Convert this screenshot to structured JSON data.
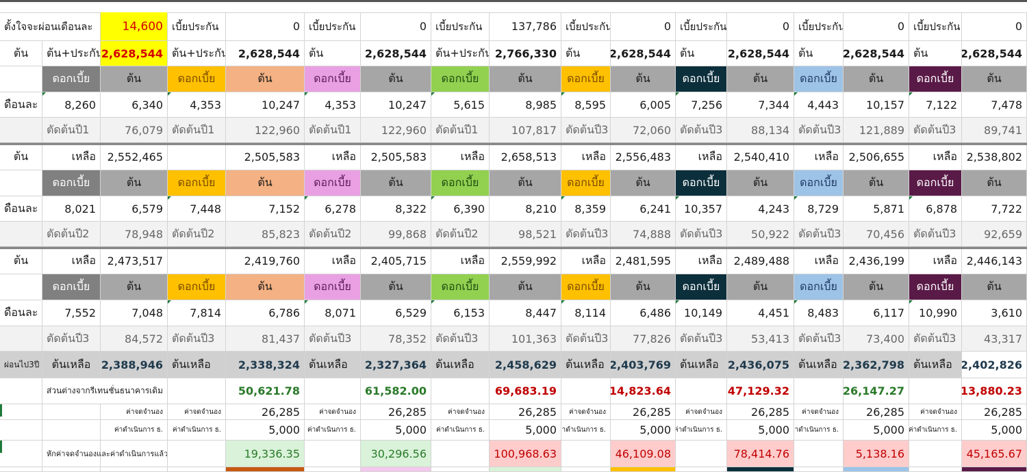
{
  "colors": {
    "yellow": "#ffff00",
    "red_text": "#d40000",
    "gray_header": "#a6a6a6",
    "orange": "#ffc000",
    "salmon": "#f4b183",
    "pink_violet": "#e9a0e2",
    "green": "#92d050",
    "navy": "#0c2f3c",
    "light_blue": "#9dc3e6",
    "plum": "#5a1a48",
    "light_gray_row": "#f2f2f2",
    "summary_gray": "#d0d0d0",
    "positive_green_bg": "#d9f2d9",
    "negative_pink_bg": "#ffcccc",
    "negative_text": "#c00000",
    "green_text": "#2a7a2a",
    "dark_num": "#1f3a4d"
  },
  "top": {
    "intent_label": "ตั้งใจจะผ่อนเดือนละ",
    "intent_value": "14,600",
    "principal_label": "ต้น",
    "principal_plus_ins_label": "ต้น+ประกัน",
    "principal_plus_ins_value": "2,628,544"
  },
  "side_labels": {
    "principal": "ต้น",
    "monthly": "ดือนละ",
    "after3": "ผ่อนไป3ปี"
  },
  "words": {
    "interest": "ดอกเบี้ย",
    "principal": "ต้น",
    "remaining": "เหลือ",
    "insurance": "เบี้ยประกัน",
    "principal_remaining": "ต้นเหลือ",
    "diff_label": "ส่วนต่างจากรีเทนชั่นธนาคารเดิม",
    "mortgage_fee": "ค่าจดจำนอง",
    "operation_fee": "ค่าดำเนินการ ธ.",
    "net_label": "หักค่าจดจำนองและค่าดำเนินการแล้ว"
  },
  "banks": [
    {
      "top_label": "ต้น+ประกัน",
      "ins_value": "0",
      "total": "2,628,544",
      "y1": {
        "int": "4,353",
        "prin": "10,247",
        "cut": "ตัดต้นปี1",
        "cut_val": "122,960"
      },
      "rem1_label": "",
      "rem1": "2,505,583",
      "y2": {
        "int": "7,448",
        "prin": "7,152",
        "cut": "ตัดต้นปี2",
        "cut_val": "85,823"
      },
      "rem2_label": "",
      "rem2": "2,419,760",
      "y3": {
        "int": "7,814",
        "prin": "6,786",
        "cut": "ตัดต้นปี3",
        "cut_val": "81,437"
      },
      "final": "2,338,324",
      "diff": "50,621.78",
      "diff_neg": false,
      "fee": "26,285",
      "op": "5,000",
      "net": "19,336.35",
      "net_neg": false
    },
    {
      "top_label": "ต้น",
      "ins_value": "0",
      "total": "2,628,544",
      "y1": {
        "int": "4,353",
        "prin": "10,247",
        "cut": "ตัดต้นปี1",
        "cut_val": "122,960"
      },
      "rem1_label": "เหลือ",
      "rem1": "2,505,583",
      "y2": {
        "int": "6,278",
        "prin": "8,322",
        "cut": "ตัดต้นปี2",
        "cut_val": "99,868"
      },
      "rem2_label": "เหลือ",
      "rem2": "2,405,715",
      "y3": {
        "int": "8,071",
        "prin": "6,529",
        "cut": "ตัดต้นปี3",
        "cut_val": "78,352"
      },
      "final": "2,327,364",
      "diff": "61,582.00",
      "diff_neg": false,
      "fee": "26,285",
      "op": "5,000",
      "net": "30,296.56",
      "net_neg": false
    },
    {
      "top_label": "ต้น+ประกัน",
      "ins_value": "137,786",
      "total": "2,766,330",
      "y1": {
        "int": "5,615",
        "prin": "8,985",
        "cut": "ตัดต้นปี1",
        "cut_val": "107,817"
      },
      "rem1_label": "เหลือ",
      "rem1": "2,658,513",
      "y2": {
        "int": "6,390",
        "prin": "8,210",
        "cut": "ตัดต้นปี2",
        "cut_val": "98,521"
      },
      "rem2_label": "เหลือ",
      "rem2": "2,559,992",
      "y3": {
        "int": "6,153",
        "prin": "8,447",
        "cut": "ตัดต้นปี3",
        "cut_val": "101,363"
      },
      "final": "2,458,629",
      "diff": "69,683.19",
      "diff_neg": true,
      "fee": "26,285",
      "op": "5,000",
      "net": "100,968.63",
      "net_neg": true
    },
    {
      "top_label": "ต้น",
      "ins_value": "0",
      "total": "2,628,544",
      "y1": {
        "int": "8,595",
        "prin": "6,005",
        "cut": "ตัดต้นปี3",
        "cut_val": "72,060"
      },
      "rem1_label": "เหลือ",
      "rem1": "2,556,483",
      "y2": {
        "int": "8,359",
        "prin": "6,241",
        "cut": "ตัดต้นปี3",
        "cut_val": "74,888"
      },
      "rem2_label": "เหลือ",
      "rem2": "2,481,595",
      "y3": {
        "int": "8,114",
        "prin": "6,486",
        "cut": "ตัดต้นปี3",
        "cut_val": "77,826"
      },
      "final": "2,403,769",
      "diff": "-14,823.64",
      "diff_neg": true,
      "fee": "26,285",
      "op": "5,000",
      "net": "46,109.08",
      "net_neg": true
    },
    {
      "top_label": "ต้น",
      "ins_value": "0",
      "total": "2,628,544",
      "y1": {
        "int": "7,256",
        "prin": "7,344",
        "cut": "ตัดต้นปี3",
        "cut_val": "88,134"
      },
      "rem1_label": "เหลือ",
      "rem1": "2,540,410",
      "y2": {
        "int": "10,357",
        "prin": "4,243",
        "cut": "ตัดต้นปี3",
        "cut_val": "50,922"
      },
      "rem2_label": "เหลือ",
      "rem2": "2,489,488",
      "y3": {
        "int": "10,149",
        "prin": "4,451",
        "cut": "ตัดต้นปี3",
        "cut_val": "53,413"
      },
      "final": "2,436,075",
      "diff": "- 47,129.32",
      "diff_neg": true,
      "fee": "26,285",
      "op": "5,000",
      "net": "78,414.76",
      "net_neg": true
    },
    {
      "top_label": "ต้น",
      "ins_value": "0",
      "total": "2,628,544",
      "y1": {
        "int": "4,443",
        "prin": "10,157",
        "cut": "ตัดต้นปี3",
        "cut_val": "121,889"
      },
      "rem1_label": "เหลือ",
      "rem1": "2,506,655",
      "y2": {
        "int": "8,729",
        "prin": "5,871",
        "cut": "ตัดต้นปี3",
        "cut_val": "70,456"
      },
      "rem2_label": "เหลือ",
      "rem2": "2,436,199",
      "y3": {
        "int": "8,483",
        "prin": "6,117",
        "cut": "ตัดต้นปี3",
        "cut_val": "73,400"
      },
      "final": "2,362,798",
      "diff": "26,147.27",
      "diff_neg": false,
      "fee": "26,285",
      "op": "5,000",
      "net": "5,138.16",
      "net_neg": true
    },
    {
      "top_label": "ต้น",
      "ins_value": "0",
      "total": "2,628,544",
      "y1": {
        "int": "7,122",
        "prin": "7,478",
        "cut": "ตัดต้นปี3",
        "cut_val": "89,741"
      },
      "rem1_label": "เหลือ",
      "rem1": "2,538,802",
      "y2": {
        "int": "6,878",
        "prin": "7,722",
        "cut": "ตัดต้นปี3",
        "cut_val": "92,659"
      },
      "rem2_label": "เหลือ",
      "rem2": "2,446,143",
      "y3": {
        "int": "10,990",
        "prin": "3,610",
        "cut": "ตัดต้นปี3",
        "cut_val": "43,317"
      },
      "final": "2,402,826",
      "diff": "13,880.23",
      "diff_neg": true,
      "fee": "26,285",
      "op": "5,000",
      "net": "45,165.67",
      "net_neg": true
    }
  ],
  "base": {
    "y1": {
      "int": "8,260",
      "prin": "6,340",
      "cut": "ตัดต้นปี1",
      "cut_val": "76,079"
    },
    "rem1_label": "เหลือ",
    "rem1": "2,552,465",
    "y2": {
      "int": "8,021",
      "prin": "6,579",
      "cut": "ตัดต้นปี2",
      "cut_val": "78,948"
    },
    "rem2_label": "เหลือ",
    "rem2": "2,473,517",
    "y3": {
      "int": "7,552",
      "prin": "7,048",
      "cut": "ตัดต้นปี3",
      "cut_val": "84,572"
    },
    "final": "2,388,946"
  }
}
